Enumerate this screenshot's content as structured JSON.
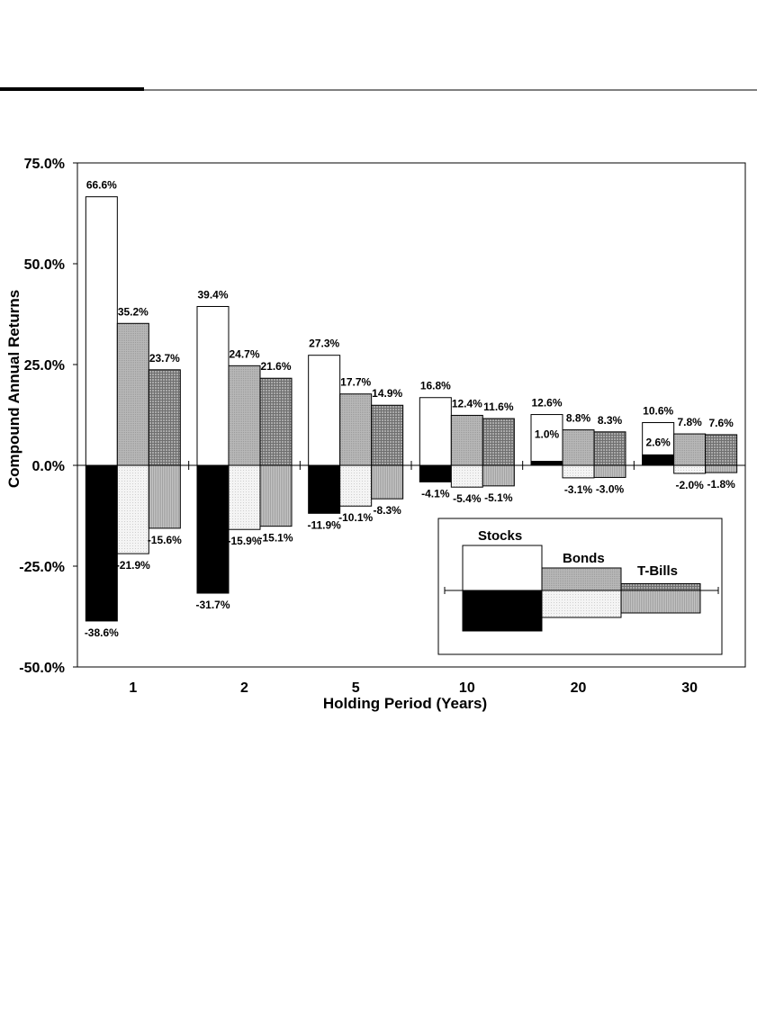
{
  "chart_data": {
    "type": "bar",
    "xlabel": "Holding Period (Years)",
    "ylabel": "Compound Annual Returns",
    "ylim": [
      -50,
      75
    ],
    "yticks": [
      75,
      50,
      25,
      0,
      -25,
      -50
    ],
    "ytick_labels": [
      "75.0%",
      "50.0%",
      "25.0%",
      "0.0%",
      "-25.0%",
      "-50.0%"
    ],
    "categories": [
      "1",
      "2",
      "5",
      "10",
      "20",
      "30"
    ],
    "series": [
      {
        "name": "Stocks",
        "max": [
          66.6,
          39.4,
          27.3,
          16.8,
          12.6,
          10.6
        ],
        "min": [
          -38.6,
          -31.7,
          -11.9,
          -4.1,
          1.0,
          2.6
        ],
        "max_labels": [
          "66.6%",
          "39.4%",
          "27.3%",
          "16.8%",
          "12.6%",
          "10.6%"
        ],
        "min_labels": [
          "-38.6%",
          "-31.7%",
          "-11.9%",
          "-4.1%",
          "1.0%",
          "2.6%"
        ]
      },
      {
        "name": "Bonds",
        "max": [
          35.2,
          24.7,
          17.7,
          12.4,
          8.8,
          7.8
        ],
        "min": [
          -21.9,
          -15.9,
          -10.1,
          -5.4,
          -3.1,
          -2.0
        ],
        "max_labels": [
          "35.2%",
          "24.7%",
          "17.7%",
          "12.4%",
          "8.8%",
          "7.8%"
        ],
        "min_labels": [
          "-21.9%",
          "-15.9%",
          "-10.1%",
          "-5.4%",
          "-3.1%",
          "-2.0%"
        ]
      },
      {
        "name": "T-Bills",
        "max": [
          23.7,
          21.6,
          14.9,
          11.6,
          8.3,
          7.6
        ],
        "min": [
          -15.6,
          -15.1,
          -8.3,
          -5.1,
          -3.0,
          -1.8
        ],
        "max_labels": [
          "23.7%",
          "21.6%",
          "14.9%",
          "11.6%",
          "8.3%",
          "7.6%"
        ],
        "min_labels": [
          "-15.6%",
          "-15.1%",
          "-8.3%",
          "-5.1%",
          "-3.0%",
          "-1.8%"
        ]
      }
    ],
    "legend": {
      "position": "bottom-right",
      "entries": [
        "Stocks",
        "Bonds",
        "T-Bills"
      ],
      "sample_max": [
        20,
        10,
        3
      ],
      "sample_min": [
        -18,
        -12,
        -10
      ]
    }
  }
}
